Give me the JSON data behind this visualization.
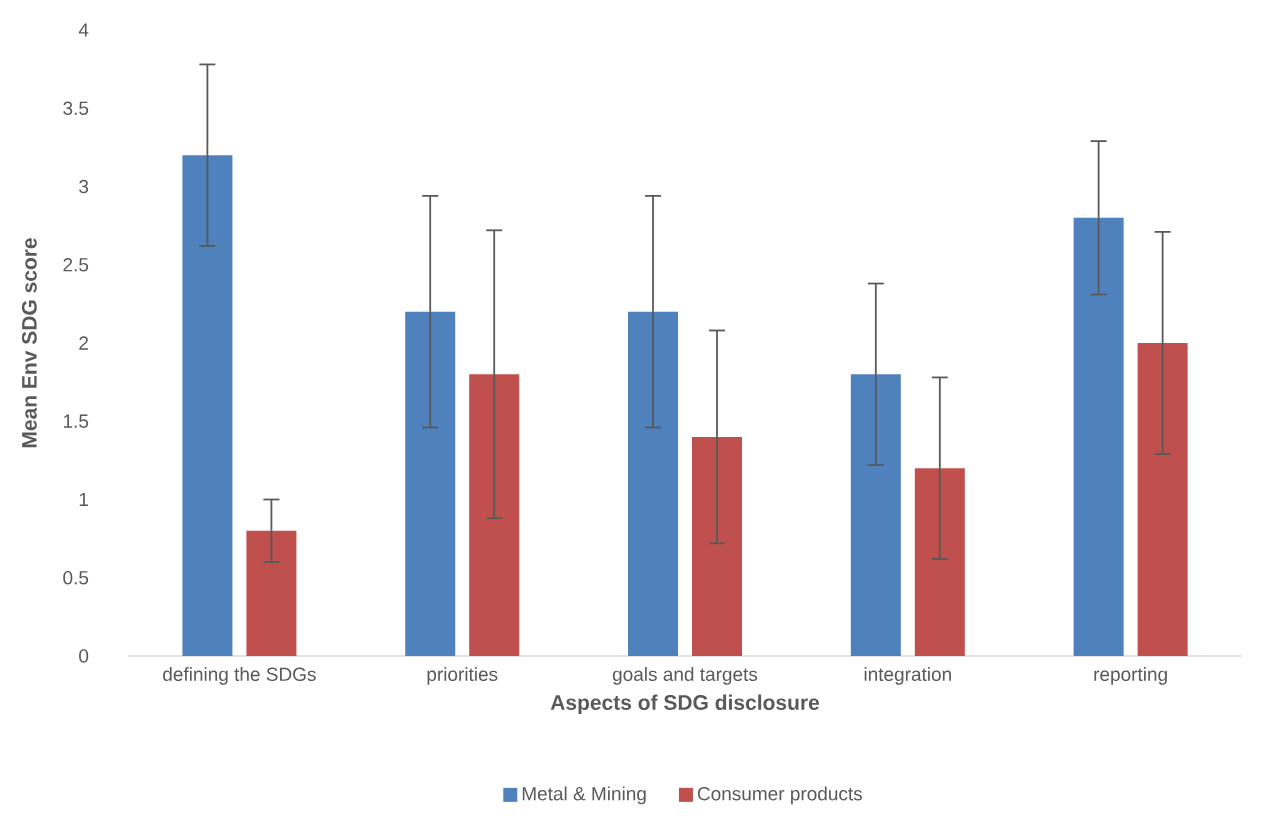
{
  "chart_data": {
    "type": "bar",
    "xlabel": "Aspects of SDG disclosure",
    "ylabel": "Mean Env SDG score",
    "categories": [
      "defining the SDGs",
      "priorities",
      "goals and targets",
      "integration",
      "reporting"
    ],
    "series": [
      {
        "name": "Metal & Mining",
        "color": "#4f81bd",
        "values": [
          3.2,
          2.2,
          2.2,
          1.8,
          2.8
        ],
        "errors": [
          0.58,
          0.74,
          0.74,
          0.58,
          0.49
        ]
      },
      {
        "name": "Consumer products",
        "color": "#c0504d",
        "values": [
          0.8,
          1.8,
          1.4,
          1.2,
          2.0
        ],
        "errors": [
          0.2,
          0.92,
          0.68,
          0.58,
          0.71
        ]
      }
    ],
    "ylim": [
      0,
      4
    ],
    "yticks": [
      0,
      0.5,
      1,
      1.5,
      2,
      2.5,
      3,
      3.5,
      4
    ],
    "legend": "bottom"
  }
}
